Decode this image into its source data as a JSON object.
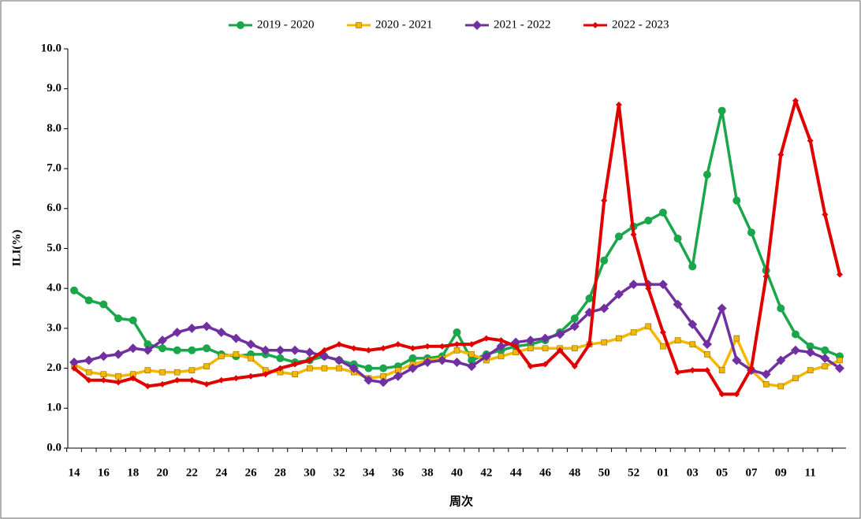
{
  "chart_data": {
    "type": "line",
    "xlabel": "周次",
    "ylabel": "ILI(%)",
    "categories": [
      "14",
      null,
      "16",
      null,
      "18",
      null,
      "20",
      null,
      "22",
      null,
      "24",
      null,
      "26",
      null,
      "28",
      null,
      "30",
      null,
      "32",
      null,
      "34",
      null,
      "36",
      null,
      "38",
      null,
      "40",
      null,
      "42",
      null,
      "44",
      null,
      "46",
      null,
      "48",
      null,
      "50",
      null,
      "52",
      null,
      "01",
      null,
      "03",
      null,
      "05",
      null,
      "07",
      null,
      "09",
      null,
      "11",
      null,
      null
    ],
    "series": [
      {
        "name": "2019 - 2020",
        "color": "#1aa64a",
        "marker": "circle",
        "values": [
          3.95,
          3.7,
          3.6,
          3.25,
          3.2,
          2.6,
          2.5,
          2.45,
          2.45,
          2.5,
          2.35,
          2.3,
          2.35,
          2.35,
          2.25,
          2.15,
          2.2,
          2.3,
          2.2,
          2.1,
          2.0,
          2.0,
          2.05,
          2.25,
          2.25,
          2.3,
          2.9,
          2.2,
          2.35,
          2.45,
          2.55,
          2.6,
          2.7,
          2.9,
          3.25,
          3.75,
          4.7,
          5.3,
          5.55,
          5.7,
          5.9,
          5.25,
          4.55,
          6.85,
          8.45,
          6.2,
          5.4,
          4.45,
          3.5,
          2.85,
          2.55,
          2.45,
          2.3
        ]
      },
      {
        "name": "2020 - 2021",
        "color": "#f5b800",
        "marker": "square",
        "values": [
          2.1,
          1.9,
          1.85,
          1.8,
          1.85,
          1.95,
          1.9,
          1.9,
          1.95,
          2.05,
          2.3,
          2.35,
          2.25,
          1.95,
          1.9,
          1.85,
          2.0,
          2.0,
          2.0,
          1.9,
          1.75,
          1.8,
          1.95,
          2.1,
          2.2,
          2.25,
          2.45,
          2.35,
          2.2,
          2.3,
          2.4,
          2.5,
          2.5,
          2.5,
          2.5,
          2.6,
          2.65,
          2.75,
          2.9,
          3.05,
          2.55,
          2.7,
          2.6,
          2.35,
          1.95,
          2.75,
          1.95,
          1.6,
          1.55,
          1.75,
          1.95,
          2.05,
          2.2
        ]
      },
      {
        "name": "2021 - 2022",
        "color": "#7030a0",
        "marker": "diamond",
        "values": [
          2.15,
          2.2,
          2.3,
          2.35,
          2.5,
          2.45,
          2.7,
          2.9,
          3.0,
          3.05,
          2.9,
          2.75,
          2.6,
          2.45,
          2.45,
          2.45,
          2.4,
          2.3,
          2.2,
          2.0,
          1.7,
          1.65,
          1.8,
          2.0,
          2.15,
          2.2,
          2.15,
          2.05,
          2.3,
          2.55,
          2.65,
          2.7,
          2.75,
          2.85,
          3.05,
          3.4,
          3.5,
          3.85,
          4.1,
          4.1,
          4.1,
          3.6,
          3.1,
          2.6,
          3.5,
          2.2,
          1.95,
          1.85,
          2.2,
          2.45,
          2.4,
          2.25,
          2.0
        ]
      },
      {
        "name": "2022 - 2023",
        "color": "#e00000",
        "marker": "diamond-small",
        "values": [
          2.0,
          1.7,
          1.7,
          1.65,
          1.75,
          1.55,
          1.6,
          1.7,
          1.7,
          1.6,
          1.7,
          1.75,
          1.8,
          1.85,
          2.0,
          2.1,
          2.2,
          2.45,
          2.6,
          2.5,
          2.45,
          2.5,
          2.6,
          2.5,
          2.55,
          2.55,
          2.6,
          2.6,
          2.75,
          2.7,
          2.55,
          2.05,
          2.1,
          2.45,
          2.05,
          2.6,
          6.2,
          8.6,
          5.35,
          4.0,
          2.9,
          1.9,
          1.95,
          1.95,
          1.35,
          1.35,
          2.0,
          4.3,
          7.35,
          8.7,
          7.7,
          5.85,
          4.35
        ]
      }
    ],
    "ylim": [
      0,
      10
    ],
    "yticks": [
      {
        "value": 0,
        "label": "0.0"
      },
      {
        "value": 1,
        "label": "1.0"
      },
      {
        "value": 2,
        "label": "2.0"
      },
      {
        "value": 3,
        "label": "3.0"
      },
      {
        "value": 4,
        "label": "4.0"
      },
      {
        "value": 5,
        "label": "5.0"
      },
      {
        "value": 6,
        "label": "6.0"
      },
      {
        "value": 7,
        "label": "7.0"
      },
      {
        "value": 8,
        "label": "8.0"
      },
      {
        "value": 9,
        "label": "9.0"
      },
      {
        "value": 10,
        "label": "10.0"
      }
    ],
    "legend": "top"
  }
}
